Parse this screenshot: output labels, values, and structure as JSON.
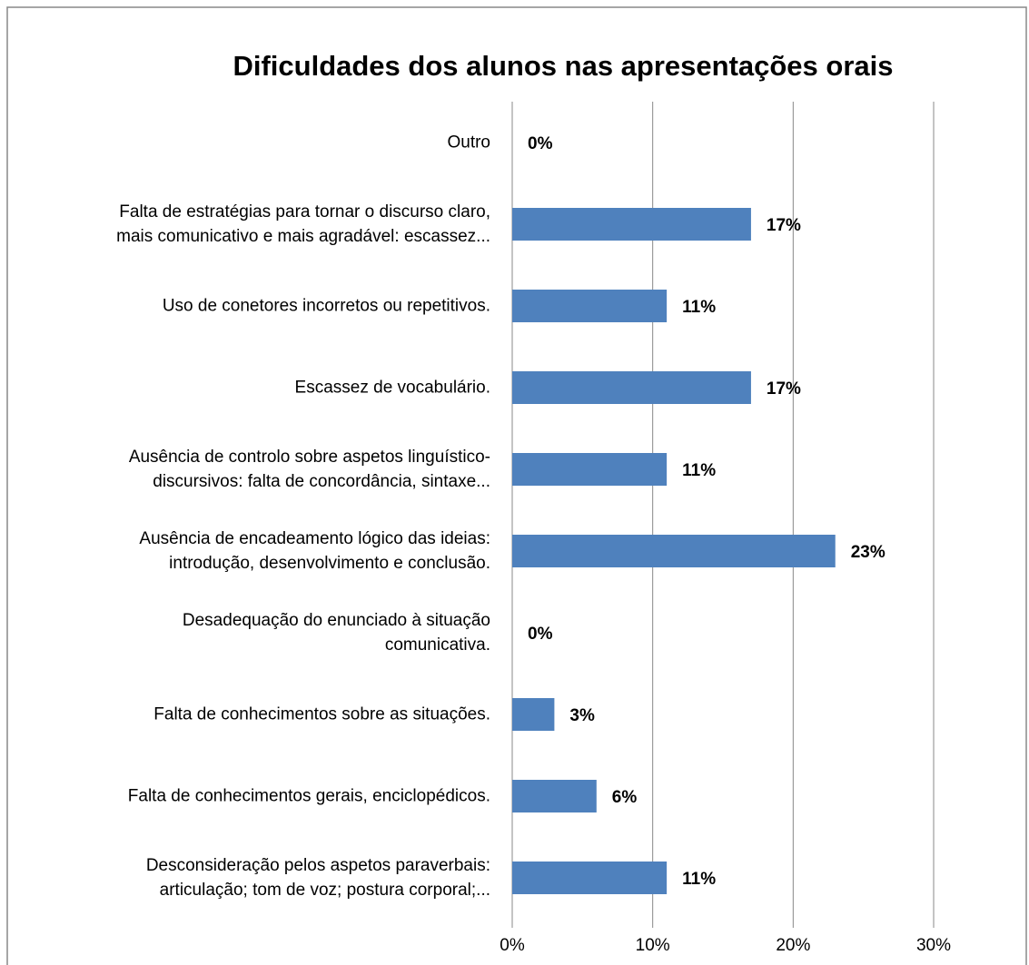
{
  "chart_data": {
    "type": "bar",
    "orientation": "horizontal",
    "title": "Dificuldades dos alunos nas apresentações orais",
    "categories": [
      "Outro",
      "Falta de estratégias para tornar o discurso claro,\nmais comunicativo e mais agradável: escassez...",
      "Uso de conetores incorretos ou repetitivos.",
      "Escassez de vocabulário.",
      "Ausência de controlo sobre aspetos linguístico-\ndiscursivos: falta de concordância, sintaxe...",
      "Ausência de encadeamento lógico das ideias:\nintrodução, desenvolvimento e conclusão.",
      "Desadequação do enunciado à situação\ncomunicativa.",
      "Falta de conhecimentos sobre as situações.",
      "Falta de conhecimentos gerais, enciclopédicos.",
      "Desconsideração pelos aspetos paraverbais:\narticulação; tom de voz; postura corporal;..."
    ],
    "values": [
      0,
      17,
      11,
      17,
      11,
      23,
      0,
      3,
      6,
      11
    ],
    "value_labels": [
      "0%",
      "17%",
      "11%",
      "17%",
      "11%",
      "23%",
      "0%",
      "3%",
      "6%",
      "11%"
    ],
    "color": "#4f81bd",
    "xlim": [
      0,
      30
    ],
    "xticks": [
      {
        "value": 0,
        "label": "0%"
      },
      {
        "value": 10,
        "label": "10%"
      },
      {
        "value": 20,
        "label": "20%"
      },
      {
        "value": 30,
        "label": "30%"
      }
    ],
    "grid": true
  }
}
